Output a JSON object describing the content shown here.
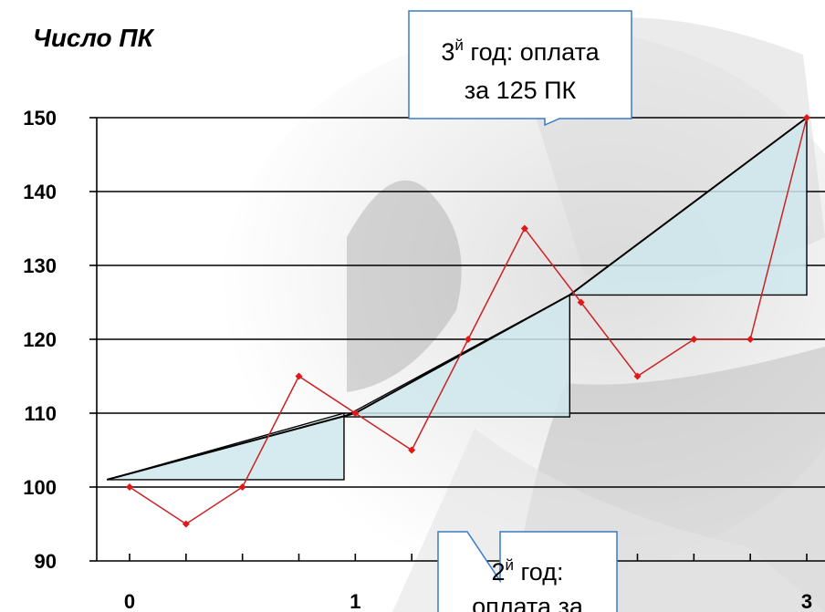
{
  "chart_data": {
    "type": "line",
    "title": "",
    "ylabel": "Число ПК",
    "xlabel": "",
    "ylim": [
      90,
      150
    ],
    "yticks": [
      90,
      100,
      110,
      120,
      130,
      140,
      150
    ],
    "xlim": [
      -0.1,
      3.0
    ],
    "xticks": [
      "0",
      "1",
      "3"
    ],
    "grid": true,
    "series": [
      {
        "x": [
          0,
          0.25,
          0.5,
          0.75,
          1.0,
          1.25,
          1.5,
          1.75,
          2.0,
          2.25,
          2.5,
          2.75,
          3.0
        ],
        "values": [
          100,
          95,
          100,
          115,
          110,
          105,
          120,
          135,
          125,
          115,
          120,
          120,
          150
        ]
      }
    ],
    "trend_line": {
      "x": [
        -0.1,
        1.0,
        1.95,
        3.0
      ],
      "values": [
        101,
        110,
        126,
        150
      ]
    },
    "shaded_triangles": [
      {
        "x_start": -0.1,
        "x_end": 0.95,
        "y_start": 101,
        "y_end": 110
      },
      {
        "x_start": 0.95,
        "x_end": 1.95,
        "y_start": 109.5,
        "y_end": 126
      },
      {
        "x_start": 1.95,
        "x_end": 3.0,
        "y_start": 126,
        "y_end": 150
      }
    ],
    "colors": {
      "series": "#cc2222",
      "marker": "#e01818",
      "triangle_fill": "#cfe8ec",
      "grid": "#000000"
    }
  },
  "callouts": {
    "year3": {
      "lines": [
        "год: оплата",
        "за 125 ПК"
      ],
      "prefix": "3",
      "superscript": "й"
    },
    "year2": {
      "lines": [
        "год:",
        "оплата за"
      ],
      "prefix": "2",
      "superscript": "й"
    }
  }
}
